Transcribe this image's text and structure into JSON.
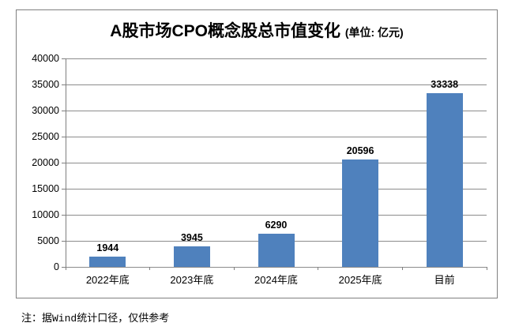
{
  "note": "注：据Wind统计口径，仅供参考",
  "chart_data": {
    "type": "bar",
    "title": "A股市场CPO概念股总市值变化",
    "title_unit": "(单位: 亿元)",
    "categories": [
      "2022年底",
      "2023年底",
      "2024年底",
      "2025年底",
      "目前"
    ],
    "values": [
      1944,
      3945,
      6290,
      20596,
      33338
    ],
    "data_labels": [
      "1944",
      "3945",
      "6290",
      "20596",
      "33338"
    ],
    "xlabel": "",
    "ylabel": "",
    "ylim": [
      0,
      40000
    ],
    "yticks": [
      0,
      5000,
      10000,
      15000,
      20000,
      25000,
      30000,
      35000,
      40000
    ],
    "grid": true,
    "legend": "none",
    "colors": {
      "bar": "#4F81BD",
      "gridline": "#8C8C8C",
      "axis": "#7F7F7F",
      "frame_border": "#808080",
      "text": "#000000"
    }
  }
}
